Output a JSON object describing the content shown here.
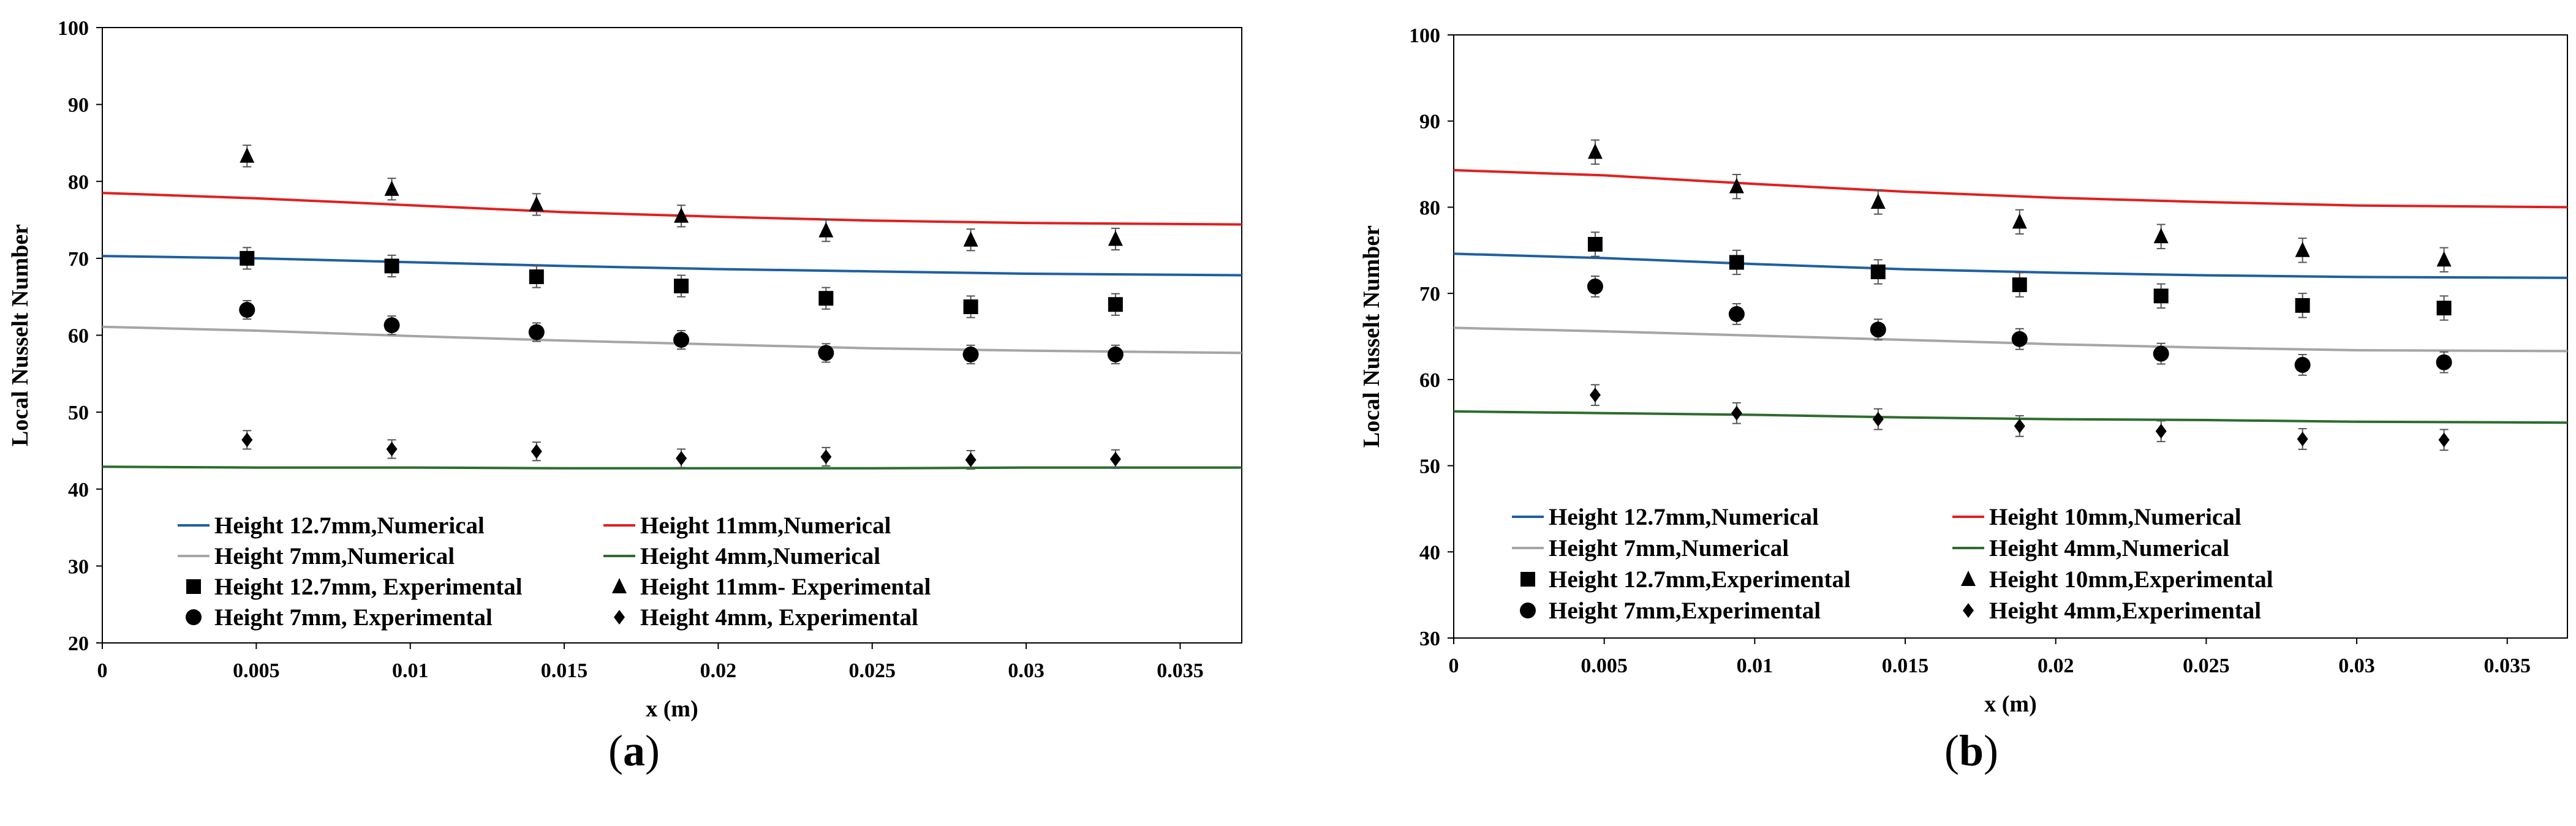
{
  "chart_data": [
    {
      "type": "line",
      "panel_label": "(a)",
      "panel_letter": "a",
      "xlabel": "x (m)",
      "ylabel": "Local Nusselt Number",
      "xlim": [
        0,
        0.037
      ],
      "ylim": [
        20,
        100
      ],
      "xticks": [
        0,
        0.005,
        0.01,
        0.015,
        0.02,
        0.025,
        0.03,
        0.035
      ],
      "xtick_labels": [
        "0",
        "0.005",
        "0.01",
        "0.015",
        "0.02",
        "0.025",
        "0.03",
        "0.035"
      ],
      "yticks": [
        20,
        30,
        40,
        50,
        60,
        70,
        80,
        90,
        100
      ],
      "ytick_labels": [
        "20",
        "30",
        "40",
        "50",
        "60",
        "70",
        "80",
        "90",
        "100"
      ],
      "lines": [
        {
          "name": "Height 12.7mm,Numerical",
          "color": "#1f5fa0",
          "x": [
            0,
            0.005,
            0.01,
            0.015,
            0.02,
            0.025,
            0.03,
            0.037
          ],
          "y": [
            70.3,
            70.0,
            69.5,
            69.0,
            68.6,
            68.3,
            68.0,
            67.8
          ]
        },
        {
          "name": "Height 11mm,Numerical",
          "color": "#e02020",
          "x": [
            0,
            0.005,
            0.01,
            0.015,
            0.02,
            0.025,
            0.03,
            0.037
          ],
          "y": [
            78.5,
            77.8,
            76.9,
            76.0,
            75.4,
            74.9,
            74.6,
            74.4
          ]
        },
        {
          "name": "Height 7mm,Numerical",
          "color": "#a6a6a6",
          "x": [
            0,
            0.005,
            0.01,
            0.015,
            0.02,
            0.025,
            0.03,
            0.037
          ],
          "y": [
            61.1,
            60.6,
            59.9,
            59.3,
            58.8,
            58.3,
            58.0,
            57.7
          ]
        },
        {
          "name": "Height 4mm,Numerical",
          "color": "#2e6b2e",
          "x": [
            0,
            0.005,
            0.01,
            0.015,
            0.02,
            0.025,
            0.03,
            0.037
          ],
          "y": [
            42.9,
            42.8,
            42.8,
            42.7,
            42.7,
            42.7,
            42.8,
            42.8
          ]
        }
      ],
      "experimental": [
        {
          "name": "Height 12.7mm, Experimental",
          "marker": "square",
          "x": [
            0.0047,
            0.0094,
            0.0141,
            0.0188,
            0.0235,
            0.0282,
            0.0329
          ],
          "y": [
            70.0,
            69.0,
            67.6,
            66.4,
            64.8,
            63.7,
            64.0
          ],
          "err": 1.4
        },
        {
          "name": "Height 11mm- Experimental",
          "marker": "triangle",
          "x": [
            0.0047,
            0.0094,
            0.0141,
            0.0188,
            0.0235,
            0.0282,
            0.0329
          ],
          "y": [
            83.3,
            79.0,
            77.0,
            75.5,
            73.6,
            72.4,
            72.5
          ],
          "err": 1.4
        },
        {
          "name": "Height 7mm, Experimental",
          "marker": "circle",
          "x": [
            0.0047,
            0.0094,
            0.0141,
            0.0188,
            0.0235,
            0.0282,
            0.0329
          ],
          "y": [
            63.3,
            61.3,
            60.4,
            59.4,
            57.7,
            57.5,
            57.5
          ],
          "err": 1.2
        },
        {
          "name": "Height 4mm, Experimental",
          "marker": "diamond",
          "x": [
            0.0047,
            0.0094,
            0.0141,
            0.0188,
            0.0235,
            0.0282,
            0.0329
          ],
          "y": [
            46.4,
            45.2,
            44.9,
            44.0,
            44.2,
            43.8,
            43.9
          ],
          "err": 1.2
        }
      ],
      "legend": [
        [
          "Height 12.7mm,Numerical",
          "Height 11mm,Numerical"
        ],
        [
          "Height 7mm,Numerical",
          "Height 4mm,Numerical"
        ],
        [
          "Height 12.7mm, Experimental",
          "Height 11mm- Experimental"
        ],
        [
          "Height 7mm, Experimental",
          "Height 4mm, Experimental"
        ]
      ]
    },
    {
      "type": "line",
      "panel_label": "(b)",
      "panel_letter": "b",
      "xlabel": "x (m)",
      "ylabel": "Local Nusselt Number",
      "xlim": [
        0,
        0.037
      ],
      "ylim": [
        30,
        100
      ],
      "xticks": [
        0,
        0.005,
        0.01,
        0.015,
        0.02,
        0.025,
        0.03,
        0.035
      ],
      "xtick_labels": [
        "0",
        "0.005",
        "0.01",
        "0.015",
        "0.02",
        "0.025",
        "0.03",
        "0.035"
      ],
      "yticks": [
        30,
        40,
        50,
        60,
        70,
        80,
        90,
        100
      ],
      "ytick_labels": [
        "30",
        "40",
        "50",
        "60",
        "70",
        "80",
        "90",
        "100"
      ],
      "lines": [
        {
          "name": "Height 12.7mm,Numerical",
          "color": "#1f5fa0",
          "x": [
            0,
            0.005,
            0.01,
            0.015,
            0.02,
            0.025,
            0.03,
            0.037
          ],
          "y": [
            74.6,
            74.1,
            73.4,
            72.8,
            72.4,
            72.1,
            71.9,
            71.8
          ]
        },
        {
          "name": "Height 10mm,Numerical",
          "color": "#e02020",
          "x": [
            0,
            0.005,
            0.01,
            0.015,
            0.02,
            0.025,
            0.03,
            0.037
          ],
          "y": [
            84.3,
            83.7,
            82.7,
            81.8,
            81.1,
            80.6,
            80.2,
            80.0
          ]
        },
        {
          "name": "Height 7mm,Numerical",
          "color": "#a6a6a6",
          "x": [
            0,
            0.005,
            0.01,
            0.015,
            0.02,
            0.025,
            0.03,
            0.037
          ],
          "y": [
            66.0,
            65.6,
            65.1,
            64.6,
            64.1,
            63.7,
            63.4,
            63.3
          ]
        },
        {
          "name": "Height 4mm,Numerical",
          "color": "#2e6b2e",
          "x": [
            0,
            0.005,
            0.01,
            0.015,
            0.02,
            0.025,
            0.03,
            0.037
          ],
          "y": [
            56.3,
            56.1,
            55.9,
            55.6,
            55.4,
            55.3,
            55.1,
            55.0
          ]
        }
      ],
      "experimental": [
        {
          "name": "Height 12.7mm,Experimental",
          "marker": "square",
          "x": [
            0.0047,
            0.0094,
            0.0141,
            0.0188,
            0.0235,
            0.0282,
            0.0329
          ],
          "y": [
            75.7,
            73.6,
            72.5,
            71.0,
            69.7,
            68.6,
            68.3
          ],
          "err": 1.4
        },
        {
          "name": "Height 10mm,Experimental",
          "marker": "triangle",
          "x": [
            0.0047,
            0.0094,
            0.0141,
            0.0188,
            0.0235,
            0.0282,
            0.0329
          ],
          "y": [
            86.4,
            82.4,
            80.6,
            78.3,
            76.6,
            75.0,
            73.9
          ],
          "err": 1.4
        },
        {
          "name": "Height 7mm,Experimental",
          "marker": "circle",
          "x": [
            0.0047,
            0.0094,
            0.0141,
            0.0188,
            0.0235,
            0.0282,
            0.0329
          ],
          "y": [
            70.8,
            67.6,
            65.8,
            64.7,
            63.0,
            61.7,
            62.0
          ],
          "err": 1.2
        },
        {
          "name": "Height 4mm,Experimental",
          "marker": "diamond",
          "x": [
            0.0047,
            0.0094,
            0.0141,
            0.0188,
            0.0235,
            0.0282,
            0.0329
          ],
          "y": [
            58.2,
            56.1,
            55.4,
            54.6,
            54.0,
            53.1,
            53.0
          ],
          "err": 1.2
        }
      ],
      "legend": [
        [
          "Height 12.7mm,Numerical",
          "Height 10mm,Numerical"
        ],
        [
          "Height 7mm,Numerical",
          "Height 4mm,Numerical"
        ],
        [
          "Height 12.7mm,Experimental",
          "Height 10mm,Experimental"
        ],
        [
          "Height 7mm,Experimental",
          "Height 4mm,Experimental"
        ]
      ]
    }
  ]
}
